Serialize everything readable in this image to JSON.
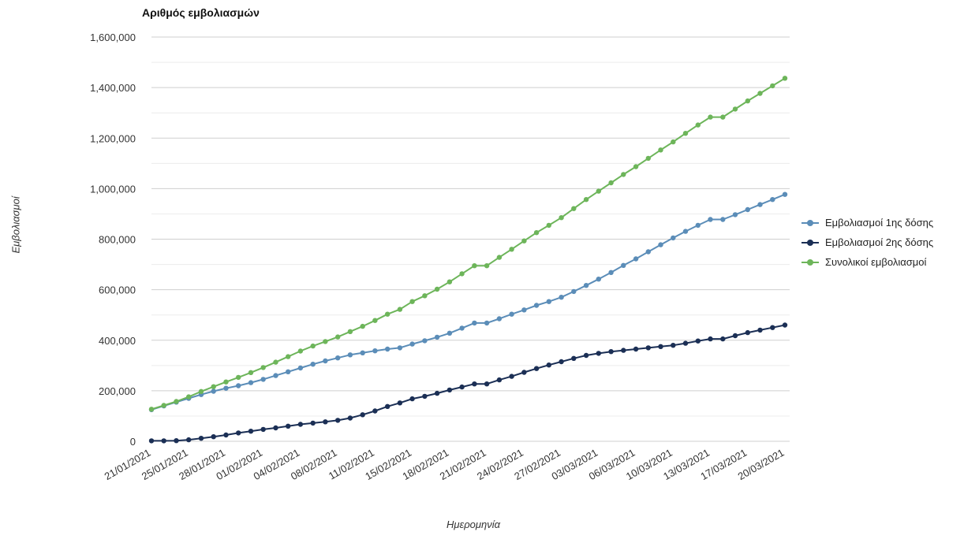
{
  "chart_data": {
    "type": "line",
    "title": "Αριθμός εμβολιασμών",
    "xlabel": "Ημερομηνία",
    "ylabel": "Εμβολιασμοί",
    "ylim": [
      0,
      1600000
    ],
    "yticks": [
      "0",
      "200,000",
      "400,000",
      "600,000",
      "800,000",
      "1,000,000",
      "1,200,000",
      "1,400,000",
      "1,600,000"
    ],
    "xtick_labels": [
      "21/01/2021",
      "25/01/2021",
      "28/01/2021",
      "01/02/2021",
      "04/02/2021",
      "08/02/2021",
      "11/02/2021",
      "15/02/2021",
      "18/02/2021",
      "21/02/2021",
      "24/02/2021",
      "27/02/2021",
      "03/03/2021",
      "06/03/2021",
      "10/03/2021",
      "13/03/2021",
      "17/03/2021",
      "20/03/2021"
    ],
    "grid": true,
    "legend_position": "right",
    "series": [
      {
        "name": "Εμβολιασμοί 1ης δόσης",
        "color": "#5b8db8",
        "values": [
          125000,
          140000,
          155000,
          170000,
          185000,
          198000,
          210000,
          220000,
          232000,
          245000,
          260000,
          275000,
          290000,
          305000,
          318000,
          330000,
          342000,
          350000,
          358000,
          365000,
          370000,
          385000,
          398000,
          412000,
          428000,
          448000,
          468000,
          468000,
          485000,
          503000,
          520000,
          538000,
          553000,
          570000,
          593000,
          617000,
          642000,
          668000,
          696000,
          722000,
          750000,
          778000,
          805000,
          831000,
          855000,
          878000,
          878000,
          897000,
          917000,
          937000,
          957000,
          977000
        ]
      },
      {
        "name": "Εμβολιασμοί 2ης δόσης",
        "color": "#1b2f55",
        "values": [
          2000,
          2000,
          2500,
          6000,
          12000,
          18000,
          25000,
          33000,
          40000,
          47000,
          53000,
          60000,
          67000,
          72000,
          77000,
          83000,
          92000,
          105000,
          120000,
          138000,
          152000,
          168000,
          178000,
          190000,
          203000,
          215000,
          227000,
          227000,
          243000,
          257000,
          273000,
          288000,
          302000,
          315000,
          328000,
          340000,
          348000,
          355000,
          360000,
          365000,
          370000,
          375000,
          380000,
          388000,
          397000,
          405000,
          405000,
          418000,
          430000,
          440000,
          450000,
          460000
        ]
      },
      {
        "name": "Συνολικοί εμβολιασμοί",
        "color": "#6db55a",
        "values": [
          127000,
          142000,
          157500,
          176000,
          197000,
          216000,
          235000,
          253000,
          272000,
          292000,
          313000,
          335000,
          357000,
          377000,
          395000,
          413000,
          434000,
          455000,
          478000,
          503000,
          522000,
          553000,
          576000,
          602000,
          631000,
          663000,
          695000,
          695000,
          728000,
          760000,
          793000,
          826000,
          855000,
          885000,
          921000,
          957000,
          990000,
          1023000,
          1056000,
          1087000,
          1120000,
          1153000,
          1185000,
          1219000,
          1252000,
          1283000,
          1283000,
          1315000,
          1347000,
          1377000,
          1407000,
          1437000
        ]
      }
    ]
  }
}
